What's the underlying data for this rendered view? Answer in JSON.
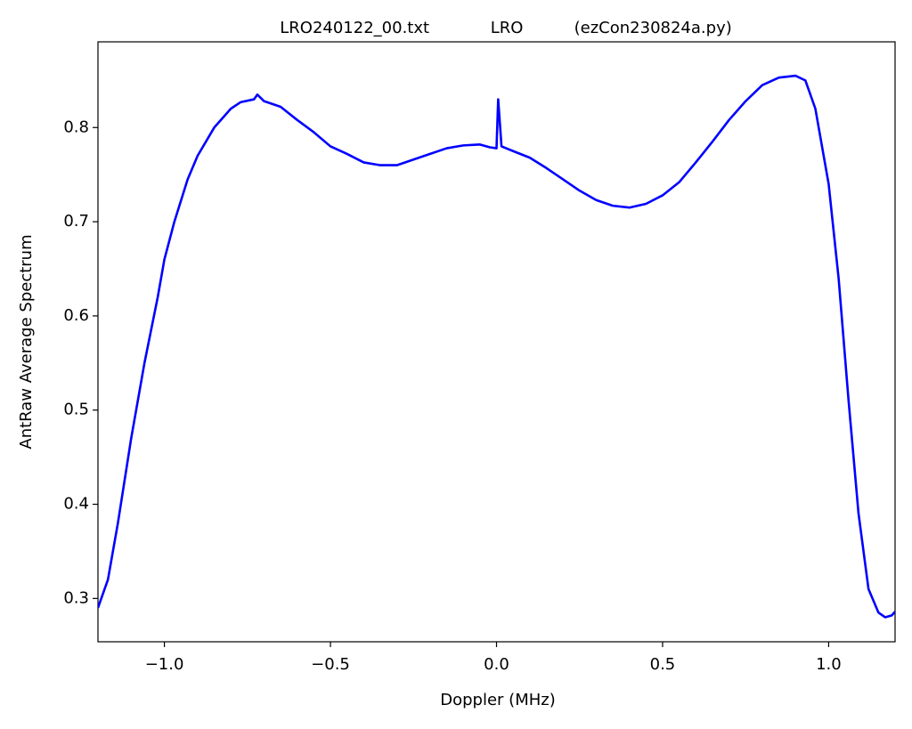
{
  "chart_data": {
    "type": "line",
    "title": "LRO240122_00.txt            LRO          (ezCon230824a.py)",
    "x_label": "Doppler (MHz)",
    "y_label": "AntRaw Average Spectrum",
    "xlim": [
      -1.2,
      1.2
    ],
    "ylim": [
      0.254,
      0.891
    ],
    "xticks": [
      {
        "value": -1.0,
        "label": "−1.0"
      },
      {
        "value": -0.5,
        "label": "−0.5"
      },
      {
        "value": 0.0,
        "label": "0.0"
      },
      0.5,
      {
        "value": 1.0,
        "label": "1.0"
      }
    ],
    "yticks": [
      0.3,
      0.4,
      0.5,
      0.6,
      0.7,
      0.8
    ],
    "grid": false,
    "series": [
      {
        "color": "#0000ff",
        "x": [
          -1.2,
          -1.17,
          -1.14,
          -1.1,
          -1.06,
          -1.02,
          -1.0,
          -0.97,
          -0.93,
          -0.9,
          -0.85,
          -0.8,
          -0.77,
          -0.73,
          -0.72,
          -0.7,
          -0.65,
          -0.6,
          -0.55,
          -0.5,
          -0.45,
          -0.4,
          -0.35,
          -0.3,
          -0.25,
          -0.2,
          -0.15,
          -0.1,
          -0.05,
          -0.02,
          0.0,
          0.005,
          0.015,
          0.05,
          0.1,
          0.15,
          0.2,
          0.25,
          0.3,
          0.35,
          0.4,
          0.45,
          0.5,
          0.55,
          0.6,
          0.65,
          0.7,
          0.75,
          0.8,
          0.85,
          0.9,
          0.93,
          0.96,
          1.0,
          1.03,
          1.06,
          1.09,
          1.12,
          1.15,
          1.17,
          1.19,
          1.2
        ],
        "values": [
          0.29,
          0.32,
          0.38,
          0.47,
          0.55,
          0.62,
          0.66,
          0.7,
          0.745,
          0.77,
          0.8,
          0.82,
          0.827,
          0.83,
          0.835,
          0.828,
          0.822,
          0.808,
          0.795,
          0.78,
          0.772,
          0.763,
          0.76,
          0.76,
          0.766,
          0.772,
          0.778,
          0.781,
          0.782,
          0.779,
          0.778,
          0.83,
          0.78,
          0.775,
          0.768,
          0.757,
          0.745,
          0.733,
          0.723,
          0.717,
          0.715,
          0.719,
          0.728,
          0.742,
          0.763,
          0.785,
          0.808,
          0.828,
          0.845,
          0.853,
          0.855,
          0.85,
          0.82,
          0.74,
          0.64,
          0.51,
          0.39,
          0.31,
          0.285,
          0.28,
          0.282,
          0.286
        ]
      }
    ]
  }
}
